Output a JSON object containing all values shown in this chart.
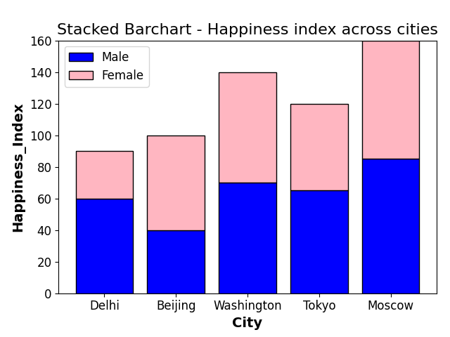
{
  "cities": [
    "Delhi",
    "Beijing",
    "Washington",
    "Tokyo",
    "Moscow"
  ],
  "male_values": [
    60,
    40,
    70,
    65,
    85
  ],
  "female_values": [
    30,
    60,
    70,
    55,
    75
  ],
  "male_color": "blue",
  "female_color": "lightpink",
  "male_edgecolor": "black",
  "female_edgecolor": "black",
  "title": "Stacked Barchart - Happiness index across cities",
  "xlabel": "City",
  "ylabel": "Happiness_Index",
  "ylim": [
    0,
    160
  ],
  "title_fontsize": 16,
  "label_fontsize": 14,
  "tick_fontsize": 12,
  "legend_labels": [
    "Male",
    "Female"
  ],
  "bar_width": 0.8
}
